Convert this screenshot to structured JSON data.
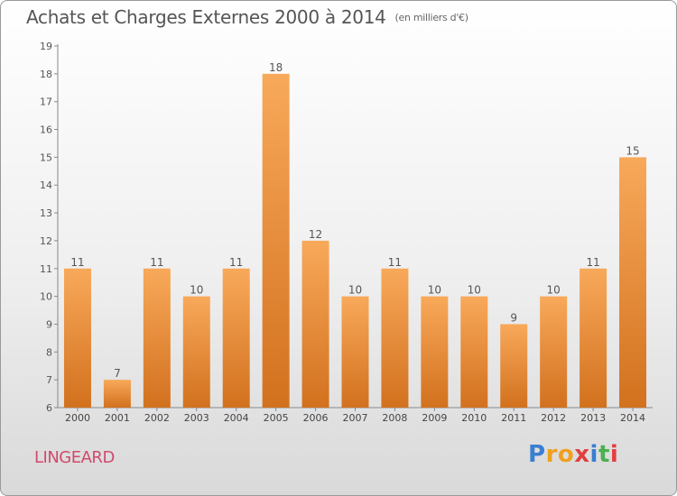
{
  "title": "Achats et Charges Externes 2000 à 2014",
  "unit": "(en milliers d'€)",
  "city": "LINGEARD",
  "brand": {
    "name": "Proxiti",
    "letters": [
      "P",
      "r",
      "o",
      "x",
      "i",
      "t",
      "i"
    ],
    "colors": [
      "#3a7fd0",
      "#f0a020",
      "#f0a020",
      "#e04040",
      "#3a7fd0",
      "#4caf50",
      "#e04040"
    ]
  },
  "colors": {
    "bar_light": "#f8a95a",
    "bar_dark": "#d2711e",
    "text": "#555555",
    "city": "#d04a6c"
  },
  "chart_data": {
    "type": "bar",
    "categories": [
      "2000",
      "2001",
      "2002",
      "2003",
      "2004",
      "2005",
      "2006",
      "2007",
      "2008",
      "2009",
      "2010",
      "2011",
      "2012",
      "2013",
      "2014"
    ],
    "values": [
      11,
      7,
      11,
      10,
      11,
      18,
      12,
      10,
      11,
      10,
      10,
      9,
      10,
      11,
      15
    ],
    "data_labels": [
      "11",
      "7",
      "11",
      "10",
      "11",
      "18",
      "12",
      "10",
      "11",
      "10",
      "10",
      "9",
      "10",
      "11",
      "15"
    ],
    "yticks": [
      6,
      7,
      8,
      9,
      10,
      11,
      12,
      13,
      14,
      15,
      16,
      17,
      18,
      19
    ],
    "ylim": [
      6,
      19
    ],
    "grid": false
  }
}
